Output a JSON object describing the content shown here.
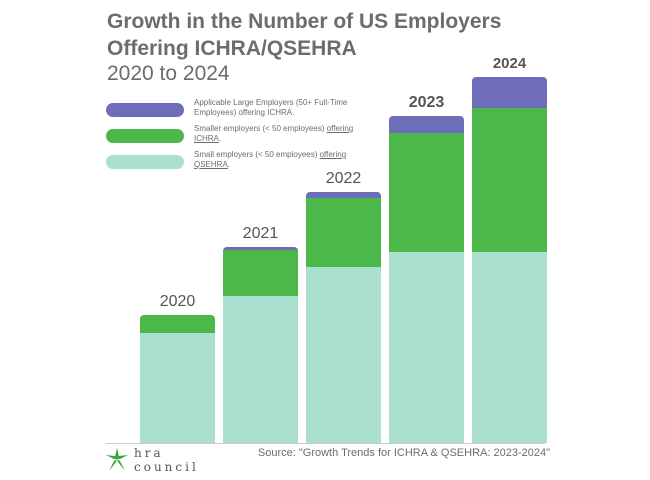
{
  "header": {
    "title": "Growth in the Number of US Employers\nOffering ICHRA/QSEHRA",
    "subtitle": "2020 to 2024"
  },
  "legend": [
    {
      "text": "Applicable Large Employers (50+ Full-Time Employees) offering ICHRA.",
      "color": "#6e6db9"
    },
    {
      "text_a": "Smaller employers (< 50 employees) ",
      "text_u": "offering ICHRA",
      "text_b": ".",
      "color": "#4cb849"
    },
    {
      "text_a": "Small employers (< 50 employees) ",
      "text_u": "offering QSEHRA",
      "text_b": ".",
      "color": "#abe0d1"
    }
  ],
  "source": "Source: \"Growth Trends for ICHRA & QSEHRA: 2023-2024\"",
  "logo": {
    "text": "hra\ncouncil",
    "icon": "star-logo-icon",
    "color": "#3aa43a"
  },
  "chart_data": {
    "type": "bar",
    "stacked": true,
    "categories": [
      "2020",
      "2021",
      "2022",
      "2023",
      "2024"
    ],
    "series": [
      {
        "name": "Small employers (< 50 employees) offering QSEHRA.",
        "color": "#abe0d1",
        "values": [
          110,
          147,
          176,
          191,
          191
        ]
      },
      {
        "name": "Smaller employers (< 50 employees) offering ICHRA.",
        "color": "#4cb849",
        "values": [
          18,
          46,
          69,
          119,
          144
        ]
      },
      {
        "name": "Applicable Large Employers (50+ Full-Time Employees) offering ICHRA.",
        "color": "#6e6db9",
        "values": [
          0,
          3,
          6,
          17,
          31
        ]
      }
    ],
    "ylim": [
      0,
      366
    ],
    "grid": false,
    "legend_position": "top-left"
  }
}
